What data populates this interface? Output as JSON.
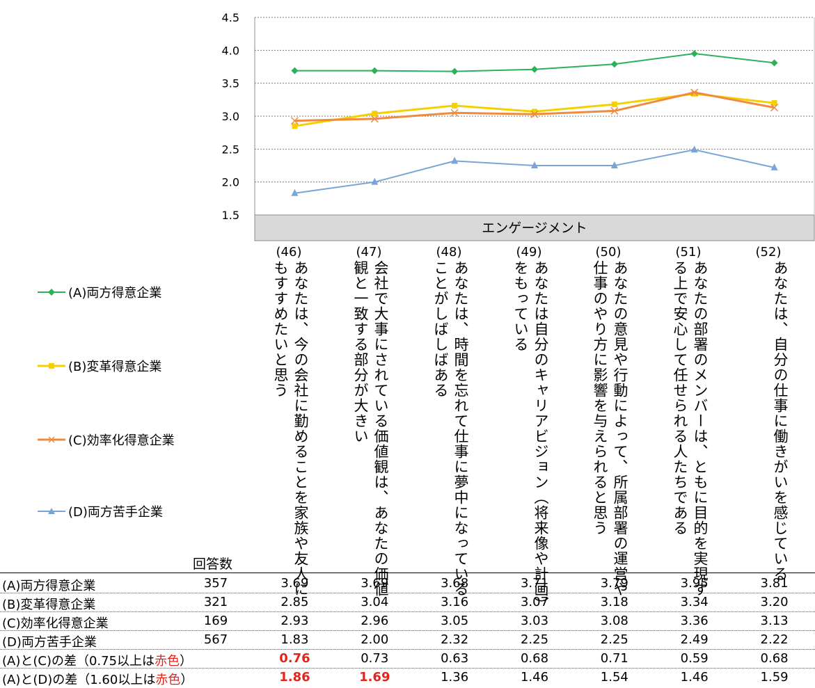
{
  "chart_data": {
    "type": "line",
    "ylim": [
      1.5,
      4.5
    ],
    "y_ticks": [
      "4.5",
      "4.0",
      "3.5",
      "3.0",
      "2.5",
      "2.0",
      "1.5"
    ],
    "y_tick_values": [
      4.5,
      4.0,
      3.5,
      3.0,
      2.5,
      2.0,
      1.5
    ],
    "x_band_label": "エンゲージメント",
    "grid": true,
    "legend_position": "left",
    "categories": [
      {
        "num": "(46)",
        "text": "あなたは、今の会社に勤めることを家族や友人にもすすめたいと思う"
      },
      {
        "num": "(47)",
        "text": "会社で大事にされている価値観は、あなたの価値観と一致する部分が大きい"
      },
      {
        "num": "(48)",
        "text": "あなたは、時間を忘れて仕事に夢中になっていることがしばしばある"
      },
      {
        "num": "(49)",
        "text": "あなたは自分のキャリアビジョン（将来像や計画）をもっている"
      },
      {
        "num": "(50)",
        "text": "あなたの意見や行動によって、所属部署の運営や仕事のやり方に影響を与えられると思う"
      },
      {
        "num": "(51)",
        "text": "あなたの部署のメンバーは、ともに目的を実現する上で安心して任せられる人たちである"
      },
      {
        "num": "(52)",
        "text": "あなたは、自分の仕事に働きがいを感じている"
      }
    ],
    "series": [
      {
        "name": "(A)両方得意企業",
        "color": "#2cb15a",
        "marker": "diamond",
        "values": [
          3.69,
          3.69,
          3.68,
          3.71,
          3.79,
          3.95,
          3.81
        ]
      },
      {
        "name": "(B)変革得意企業",
        "color": "#f5d000",
        "marker": "square",
        "values": [
          2.85,
          3.04,
          3.16,
          3.07,
          3.18,
          3.34,
          3.2
        ]
      },
      {
        "name": "(C)効率化得意企業",
        "color": "#f08a3e",
        "marker": "x",
        "values": [
          2.93,
          2.96,
          3.05,
          3.03,
          3.08,
          3.36,
          3.13
        ]
      },
      {
        "name": "(D)両方苦手企業",
        "color": "#7aa3d8",
        "marker": "triangle",
        "values": [
          1.83,
          2.0,
          2.32,
          2.25,
          2.25,
          2.49,
          2.22
        ]
      }
    ]
  },
  "table": {
    "count_header": "回答数",
    "rows": [
      {
        "label": "(A)両方得意企業",
        "count": "357",
        "values": [
          "3.69",
          "3.69",
          "3.68",
          "3.71",
          "3.79",
          "3.95",
          "3.81"
        ]
      },
      {
        "label": "(B)変革得意企業",
        "count": "321",
        "values": [
          "2.85",
          "3.04",
          "3.16",
          "3.07",
          "3.18",
          "3.34",
          "3.20"
        ]
      },
      {
        "label": "(C)効率化得意企業",
        "count": "169",
        "values": [
          "2.93",
          "2.96",
          "3.05",
          "3.03",
          "3.08",
          "3.36",
          "3.13"
        ]
      },
      {
        "label": "(D)両方苦手企業",
        "count": "567",
        "values": [
          "1.83",
          "2.00",
          "2.32",
          "2.25",
          "2.25",
          "2.49",
          "2.22"
        ]
      }
    ],
    "diff_rows": [
      {
        "label_prefix": "(A)と(C)の差（0.75以上は",
        "label_red": "赤色",
        "label_suffix": "）",
        "values": [
          "0.76",
          "0.73",
          "0.63",
          "0.68",
          "0.71",
          "0.59",
          "0.68"
        ],
        "highlight": [
          true,
          false,
          false,
          false,
          false,
          false,
          false
        ]
      },
      {
        "label_prefix": "(A)と(D)の差（1.60以上は",
        "label_red": "赤色",
        "label_suffix": "）",
        "values": [
          "1.86",
          "1.69",
          "1.36",
          "1.46",
          "1.54",
          "1.46",
          "1.59"
        ],
        "highlight": [
          true,
          true,
          false,
          false,
          false,
          false,
          false
        ]
      }
    ],
    "highlight_color": "#e3241b"
  }
}
